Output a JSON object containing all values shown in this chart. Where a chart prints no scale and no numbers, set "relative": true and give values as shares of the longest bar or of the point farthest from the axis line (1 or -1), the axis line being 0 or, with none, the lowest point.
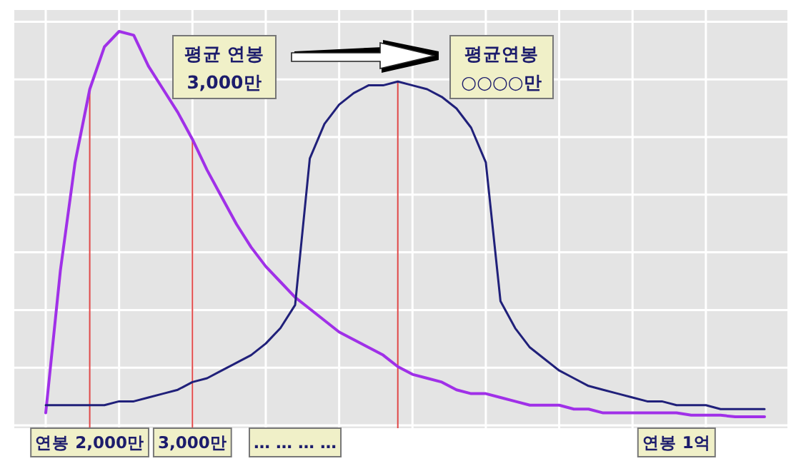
{
  "chart_data": {
    "type": "line",
    "relative": true,
    "grid": true,
    "categories": [
      null,
      null,
      null,
      "연봉 2,000만",
      null,
      null,
      null,
      null,
      null,
      null,
      "3,000만",
      null,
      null,
      null,
      null,
      null,
      null,
      "… … … …",
      null,
      null,
      null,
      null,
      null,
      null,
      null,
      null,
      null,
      null,
      null,
      null,
      null,
      null,
      null,
      null,
      null,
      null,
      null,
      null,
      null,
      null,
      null,
      null,
      null,
      "연봉 1억",
      null,
      null,
      null,
      null,
      null,
      null
    ],
    "series": [
      {
        "color": "#a030e8",
        "values": [
          0.01,
          0.38,
          0.66,
          0.85,
          0.96,
          1,
          0.99,
          0.91,
          0.85,
          0.79,
          0.72,
          0.64,
          0.57,
          0.5,
          0.44,
          0.39,
          0.35,
          0.31,
          0.28,
          0.25,
          0.22,
          0.2,
          0.18,
          0.16,
          0.13,
          0.11,
          0.1,
          0.09,
          0.07,
          0.06,
          0.06,
          0.05,
          0.04,
          0.03,
          0.03,
          0.03,
          0.02,
          0.02,
          0.01,
          0.01,
          0.01,
          0.01,
          0.01,
          0.01,
          0.004,
          0.004,
          0.004,
          0,
          0,
          0
        ]
      },
      {
        "color": "#20207a",
        "values": [
          0.03,
          0.03,
          0.03,
          0.03,
          0.03,
          0.04,
          0.04,
          0.05,
          0.06,
          0.07,
          0.09,
          0.1,
          0.12,
          0.14,
          0.16,
          0.19,
          0.23,
          0.29,
          0.67,
          0.76,
          0.81,
          0.84,
          0.86,
          0.86,
          0.87,
          0.86,
          0.85,
          0.83,
          0.8,
          0.75,
          0.66,
          0.3,
          0.23,
          0.18,
          0.15,
          0.12,
          0.1,
          0.08,
          0.07,
          0.06,
          0.05,
          0.04,
          0.04,
          0.03,
          0.03,
          0.03,
          0.02,
          0.02,
          0.02,
          0.02
        ]
      }
    ],
    "annotations": [
      "평균 연봉\n3,000만",
      "평균연봉\n○○○○만"
    ]
  }
}
